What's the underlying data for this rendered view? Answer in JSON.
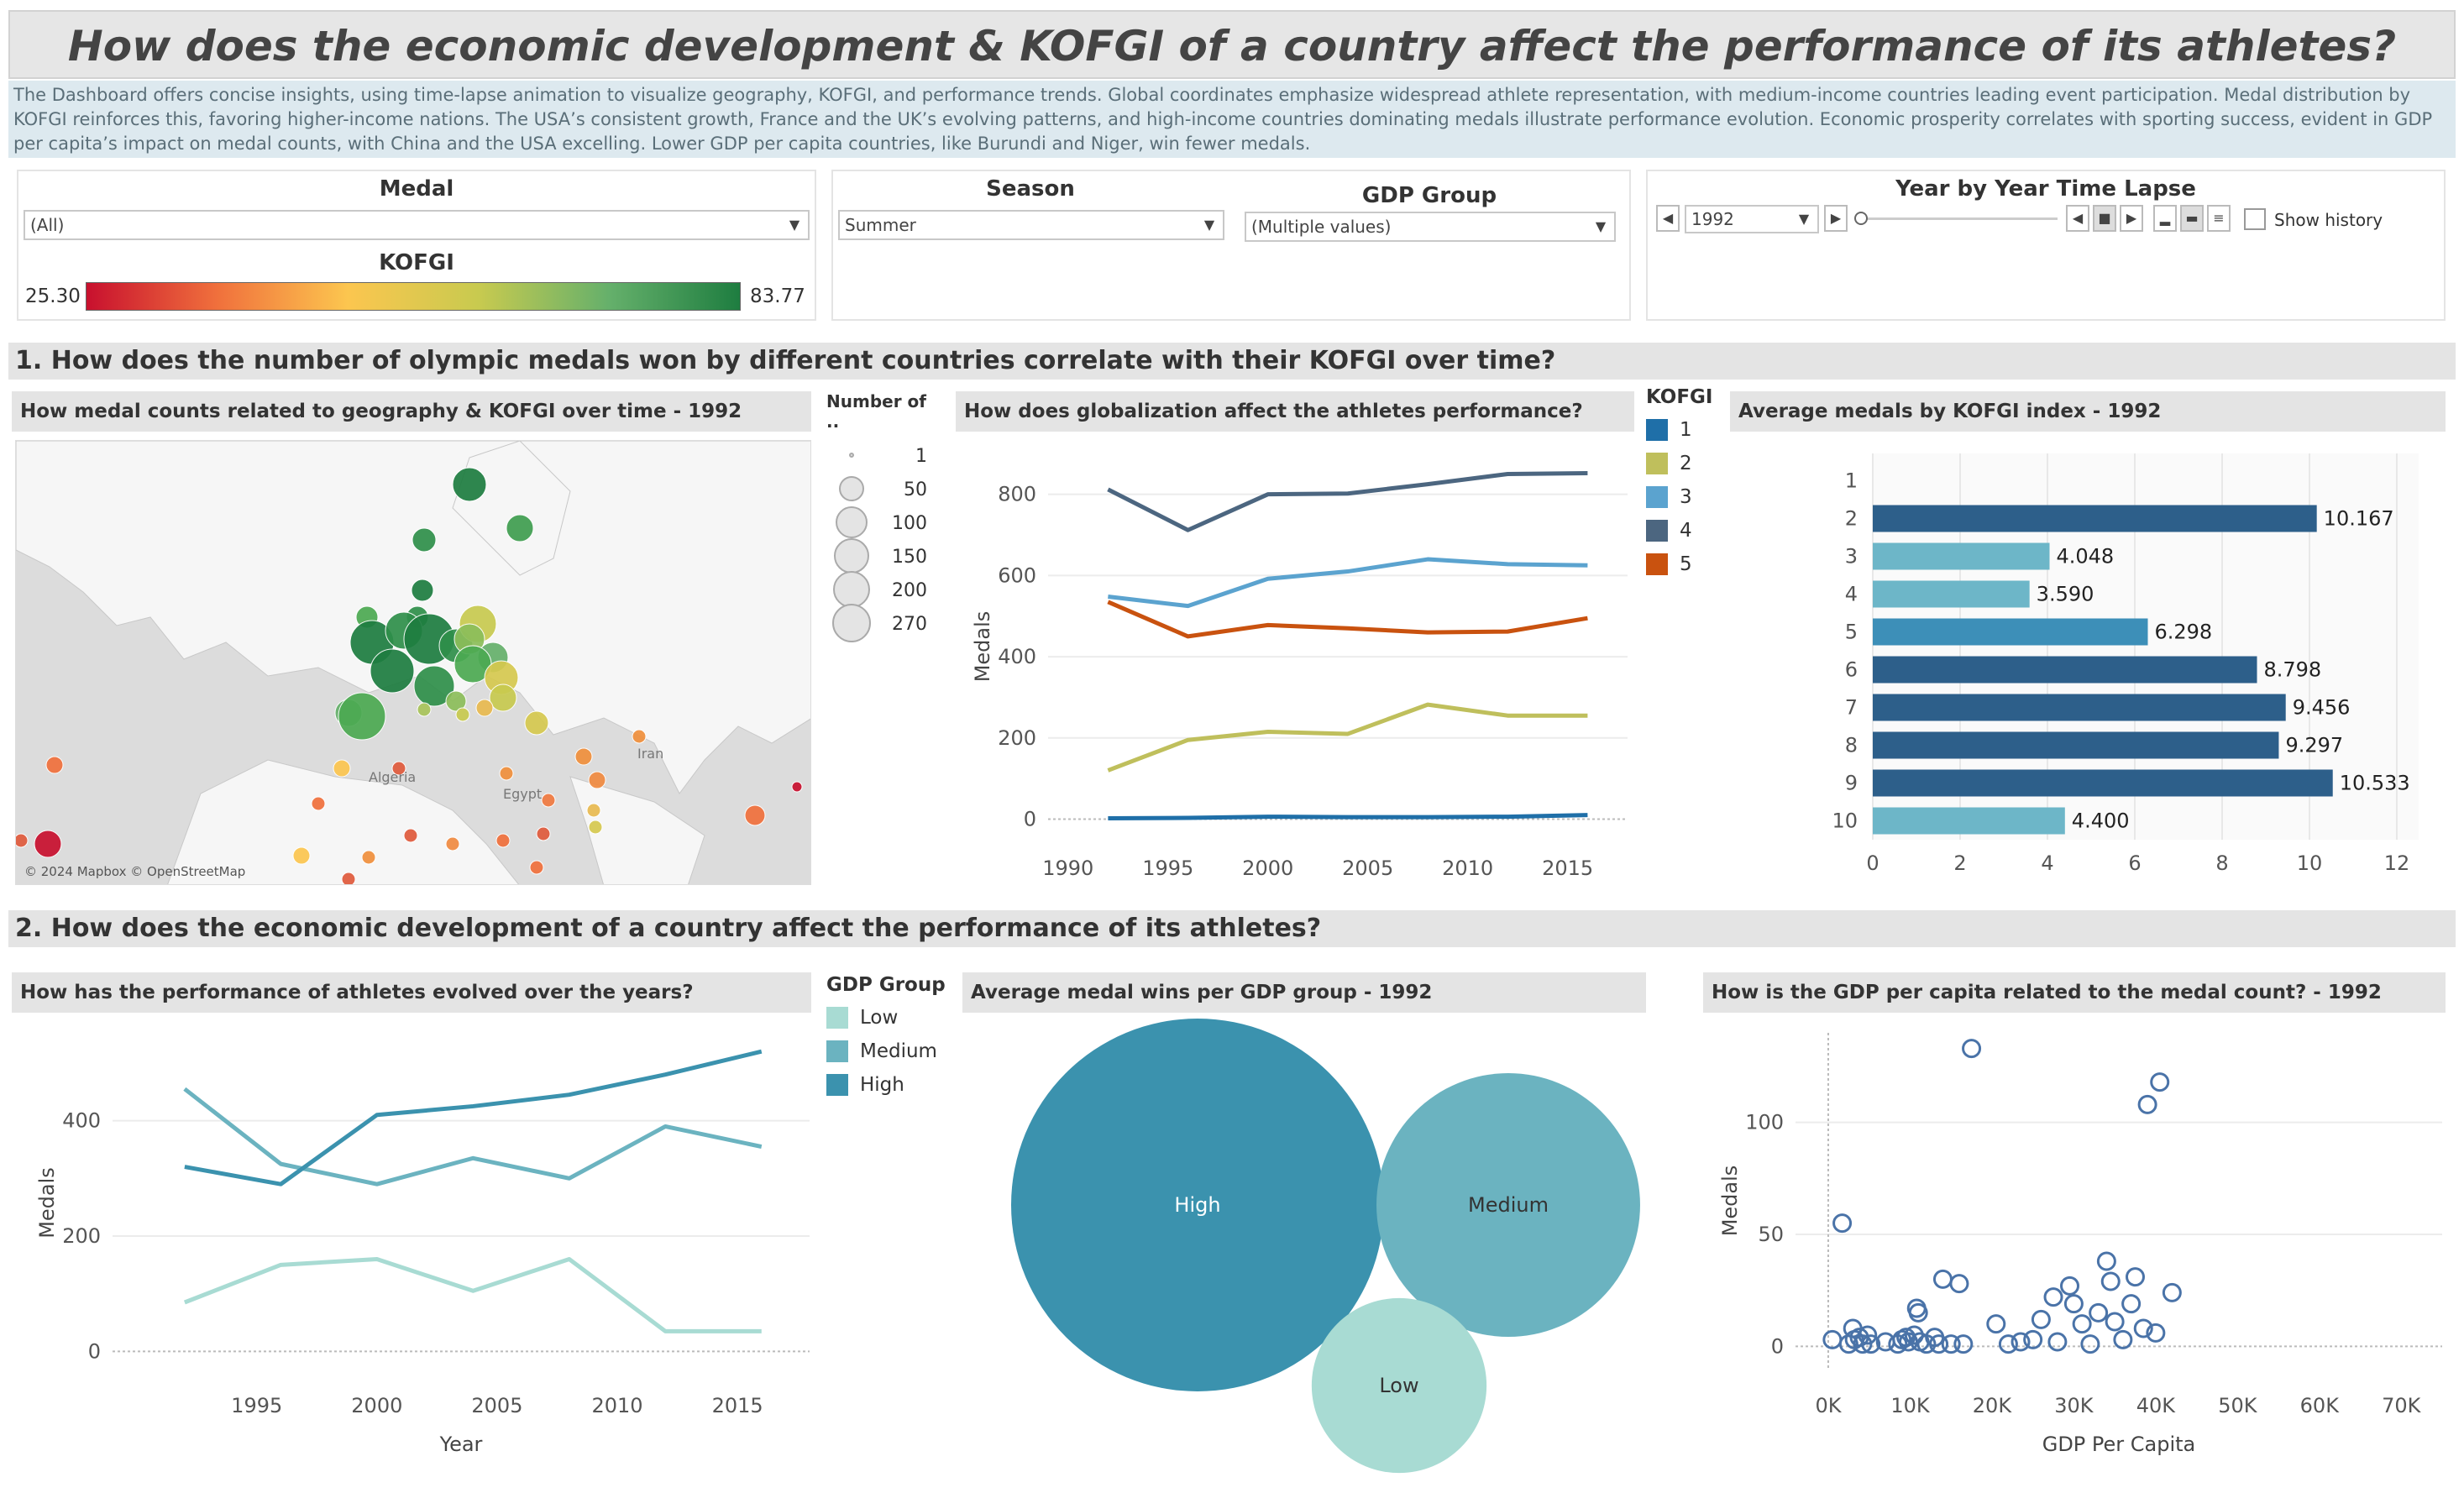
{
  "title": "How does the economic development & KOFGI of a country affect the performance of its athletes?",
  "description": "The Dashboard offers concise insights, using time-lapse animation to visualize geography, KOFGI, and performance trends. Global coordinates emphasize widespread athlete representation, with medium-income countries leading event participation. Medal distribution by KOFGI reinforces this, favoring higher-income nations. The USA’s consistent growth, France and the UK’s evolving patterns, and high-income countries dominating medals illustrate performance evolution. Economic prosperity correlates with sporting success, evident in GDP per capita’s impact on medal counts, with China and the USA excelling. Lower GDP per capita countries, like Burundi and Niger, win fewer medals.",
  "filters": {
    "medal_label": "Medal",
    "medal_value": "(All)",
    "kofgi_label": "KOFGI",
    "kofgi_min": "25.30",
    "kofgi_max": "83.77",
    "season_label": "Season",
    "season_value": "Summer",
    "gdp_label": "GDP Group",
    "gdp_value": "(Multiple values)",
    "timelapse_label": "Year by Year Time Lapse",
    "year_value": "1992",
    "show_history": "Show history"
  },
  "section1": "1. How does the number of olympic medals won by different countries correlate with their KOFGI over time?",
  "section2": "2. How does the economic development of a country affect the performance of its athletes?",
  "map": {
    "title": "How medal counts related to geography & KOFGI over time  - 1992",
    "attribution": "© 2024 Mapbox © OpenStreetMap",
    "labels": [
      "Iran",
      "Egypt",
      "Algeria"
    ],
    "size_legend_title": "Number of ..",
    "size_legend": [
      "1",
      "50",
      "100",
      "150",
      "200",
      "270"
    ]
  },
  "kofgi_legend": {
    "title": "KOFGI",
    "items": [
      "1",
      "2",
      "3",
      "4",
      "5"
    ],
    "colors": [
      "#1f6fa8",
      "#bfbf5c",
      "#5ba3cf",
      "#4c6680",
      "#c9520f"
    ]
  },
  "gdp_legend": {
    "title": "GDP Group",
    "items": [
      "Low",
      "Medium",
      "High"
    ],
    "colors": [
      "#a8dbd3",
      "#6bb3c0",
      "#3b92ae"
    ]
  },
  "chart_data": [
    {
      "id": "globalization",
      "type": "line",
      "title": "How does globalization affect the athletes performance?",
      "ylabel": "Medals",
      "xlabel": "",
      "x": [
        1992,
        1996,
        2000,
        2004,
        2008,
        2012,
        2016
      ],
      "xticks": [
        1990,
        1995,
        2000,
        2005,
        2010,
        2015
      ],
      "yticks": [
        0,
        200,
        400,
        600,
        800
      ],
      "xlim": [
        1989,
        2018
      ],
      "ylim": [
        -30,
        880
      ],
      "series": [
        {
          "name": "1",
          "color": "#1f6fa8",
          "values": [
            2,
            3,
            6,
            5,
            5,
            6,
            10
          ]
        },
        {
          "name": "2",
          "color": "#bfbf5c",
          "values": [
            120,
            195,
            215,
            210,
            282,
            255,
            255
          ]
        },
        {
          "name": "3",
          "color": "#5ba3cf",
          "values": [
            548,
            525,
            592,
            610,
            640,
            628,
            625
          ]
        },
        {
          "name": "4",
          "color": "#4c6680",
          "values": [
            812,
            712,
            800,
            802,
            825,
            850,
            852
          ]
        },
        {
          "name": "5",
          "color": "#c9520f",
          "values": [
            535,
            450,
            478,
            470,
            460,
            462,
            495
          ]
        }
      ]
    },
    {
      "id": "avg_kofgi",
      "type": "bar",
      "title": "Average medals by KOFGI index - 1992",
      "xlabel": "Medals",
      "ylabel": "",
      "categories": [
        "1",
        "2",
        "3",
        "4",
        "5",
        "6",
        "7",
        "8",
        "9",
        "10"
      ],
      "values": [
        null,
        10.167,
        4.048,
        3.59,
        6.298,
        8.798,
        9.456,
        9.297,
        10.533,
        4.4
      ],
      "labels": [
        "",
        "10.167",
        "4.048",
        "3.590",
        "6.298",
        "8.798",
        "9.456",
        "9.297",
        "10.533",
        "4.400"
      ],
      "colors": [
        "#2d5f8a",
        "#2d5f8a",
        "#6db6c8",
        "#6db6c8",
        "#3d8fb8",
        "#2d5f8a",
        "#2d5f8a",
        "#2d5f8a",
        "#2d5f8a",
        "#6db6c8"
      ],
      "xticks": [
        0,
        2,
        4,
        6,
        8,
        10,
        12
      ],
      "xlim": [
        0,
        12.5
      ]
    },
    {
      "id": "performance",
      "type": "line",
      "title": "How has the performance of athletes evolved over the years?",
      "ylabel": "Medals",
      "xlabel": "Year",
      "x": [
        1992,
        1996,
        2000,
        2004,
        2008,
        2012,
        2016
      ],
      "xticks": [
        1995,
        2000,
        2005,
        2010,
        2015
      ],
      "yticks": [
        0,
        200,
        400
      ],
      "xlim": [
        1989,
        2018
      ],
      "ylim": [
        -30,
        545
      ],
      "series": [
        {
          "name": "Low",
          "color": "#a8dbd3",
          "values": [
            85,
            150,
            160,
            105,
            160,
            35,
            35
          ]
        },
        {
          "name": "Medium",
          "color": "#6bb3c0",
          "values": [
            455,
            325,
            290,
            335,
            300,
            390,
            355
          ]
        },
        {
          "name": "High",
          "color": "#3b92ae",
          "values": [
            320,
            290,
            410,
            425,
            445,
            480,
            520
          ]
        }
      ]
    },
    {
      "id": "gdp_bubbles",
      "type": "bubble",
      "title": "Average medal wins per GDP group - 1992",
      "categories": [
        "High",
        "Medium",
        "Low"
      ],
      "values": [
        100,
        50,
        22
      ],
      "colors": [
        "#3b92ae",
        "#6bb3c0",
        "#a8dbd3"
      ]
    },
    {
      "id": "gdp_scatter",
      "type": "scatter",
      "title": "How is the GDP per capita related to the medal count? - 1992",
      "xlabel": "GDP Per Capita",
      "ylabel": "Medals",
      "xticks": [
        0,
        10000,
        20000,
        30000,
        40000,
        50000,
        60000,
        70000
      ],
      "xticklabels": [
        "0K",
        "10K",
        "20K",
        "30K",
        "40K",
        "50K",
        "60K",
        "70K"
      ],
      "yticks": [
        0,
        50,
        100
      ],
      "xlim": [
        -4000,
        75000
      ],
      "ylim": [
        -10,
        140
      ],
      "points": [
        [
          1700,
          55
        ],
        [
          17500,
          133
        ],
        [
          39000,
          108
        ],
        [
          40500,
          118
        ],
        [
          500,
          3
        ],
        [
          2500,
          1
        ],
        [
          3000,
          8
        ],
        [
          3200,
          3
        ],
        [
          3800,
          4
        ],
        [
          4200,
          1
        ],
        [
          4800,
          5
        ],
        [
          5200,
          1
        ],
        [
          7000,
          2
        ],
        [
          8500,
          1
        ],
        [
          9000,
          3
        ],
        [
          9500,
          4
        ],
        [
          9800,
          2
        ],
        [
          10500,
          5
        ],
        [
          10800,
          17
        ],
        [
          11000,
          15
        ],
        [
          11200,
          2
        ],
        [
          12000,
          1
        ],
        [
          13000,
          4
        ],
        [
          13500,
          1
        ],
        [
          14000,
          30
        ],
        [
          15000,
          1
        ],
        [
          16000,
          28
        ],
        [
          16500,
          1
        ],
        [
          20500,
          10
        ],
        [
          22000,
          1
        ],
        [
          23500,
          2
        ],
        [
          25000,
          3
        ],
        [
          26000,
          12
        ],
        [
          27500,
          22
        ],
        [
          28000,
          2
        ],
        [
          29500,
          27
        ],
        [
          30000,
          19
        ],
        [
          31000,
          10
        ],
        [
          32000,
          1
        ],
        [
          33000,
          15
        ],
        [
          34000,
          38
        ],
        [
          34500,
          29
        ],
        [
          35000,
          11
        ],
        [
          36000,
          3
        ],
        [
          37000,
          19
        ],
        [
          37500,
          31
        ],
        [
          38500,
          8
        ],
        [
          40000,
          6
        ],
        [
          42000,
          24
        ]
      ]
    }
  ]
}
